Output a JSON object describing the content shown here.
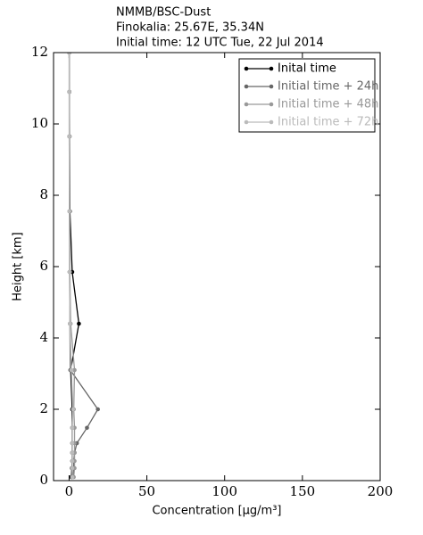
{
  "chart_data": {
    "type": "line",
    "orientation": "profile",
    "title_lines": [
      "NMMB/BSC-Dust",
      "Finokalia: 25.67E, 35.34N",
      "Initial time: 12 UTC Tue, 22 Jul 2014"
    ],
    "x_label": "Concentration [μg/m³]",
    "y_label": "Height [km]",
    "y": [
      0.1,
      0.35,
      0.55,
      0.78,
      1.05,
      1.48,
      2.0,
      3.1,
      4.4,
      5.85,
      7.55,
      9.65,
      10.9,
      12
    ],
    "series": [
      {
        "name": "Inital time",
        "color": "#000000",
        "values": [
          1.5,
          1.8,
          2,
          2,
          2,
          2,
          2,
          1,
          6.3,
          2,
          0.5,
          0.3,
          0.2,
          0.1
        ]
      },
      {
        "name": "Initial time + 24h",
        "color": "#666666",
        "values": [
          2.5,
          3,
          3,
          3.5,
          5,
          11.5,
          18.5,
          0.8,
          0.5,
          0.3,
          0.2,
          0.1,
          0.1,
          0.1
        ]
      },
      {
        "name": "Initial time + 48h",
        "color": "#999999",
        "values": [
          3,
          3.5,
          3.5,
          3.5,
          3.5,
          3.5,
          3,
          3.5,
          1,
          0.5,
          0.3,
          0.2,
          0.1,
          0.1
        ]
      },
      {
        "name": "Initial time + 72h",
        "color": "#bbbbbb",
        "values": [
          2,
          2,
          2,
          2,
          2,
          2,
          2.5,
          1.5,
          0.5,
          0.3,
          0.2,
          0.1,
          0.1,
          0.1
        ]
      }
    ],
    "xlim": [
      -10,
      200
    ],
    "xticks": [
      0,
      50,
      100,
      150,
      200
    ],
    "ylim": [
      0,
      12
    ],
    "yticks": [
      0,
      2,
      4,
      6,
      8,
      10,
      12
    ],
    "legend": "upper right"
  }
}
